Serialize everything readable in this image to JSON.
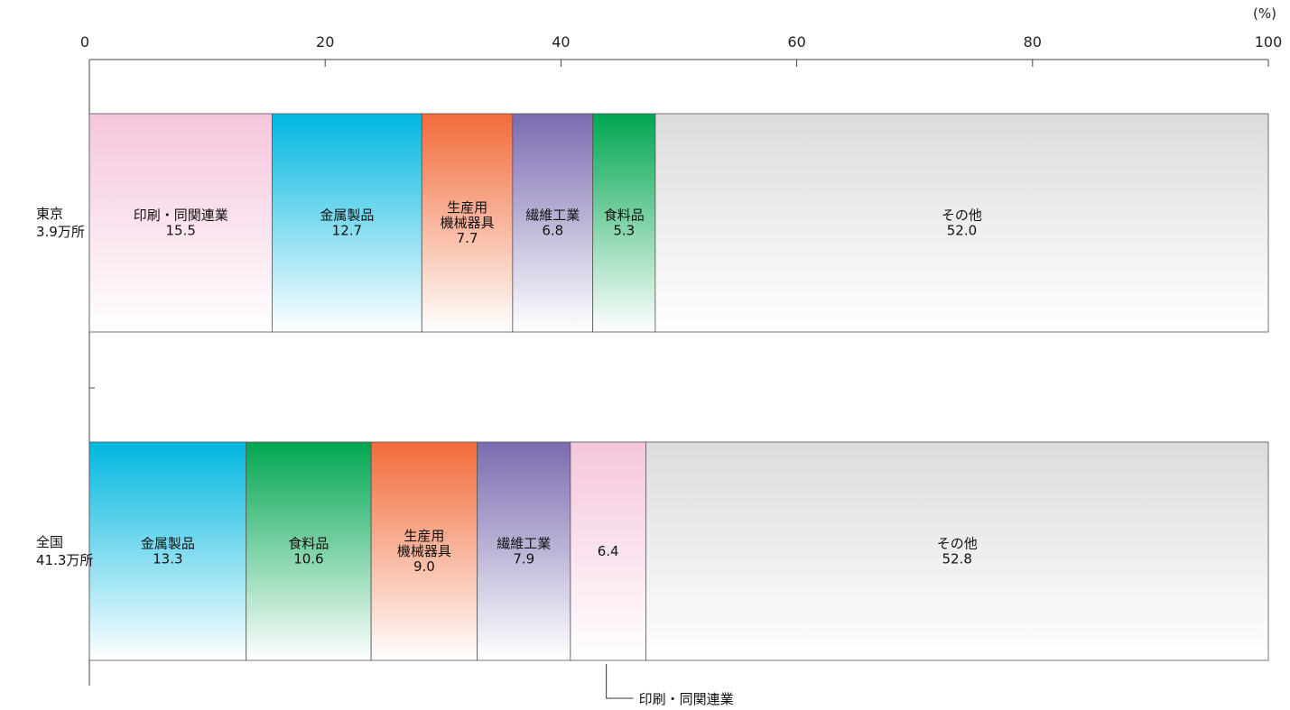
{
  "chart_data": {
    "type": "bar",
    "orientation": "horizontal",
    "stacked": true,
    "unit": "(%)",
    "xlim": [
      0,
      100
    ],
    "x_ticks": [
      0,
      20,
      40,
      60,
      80,
      100
    ],
    "grid": false,
    "rows": [
      {
        "label_lines": [
          "東京",
          "3.9万所"
        ],
        "segments": [
          {
            "label": [
              "印刷・同関連業"
            ],
            "value": 15.5,
            "value_text": "15.5",
            "color": "#f5c6dd"
          },
          {
            "label": [
              "金属製品"
            ],
            "value": 12.7,
            "value_text": "12.7",
            "color": "#00b7e0"
          },
          {
            "label": [
              "生産用",
              "機械器具"
            ],
            "value": 7.7,
            "value_text": "7.7",
            "color": "#f26b3a"
          },
          {
            "label": [
              "繊維工業"
            ],
            "value": 6.8,
            "value_text": "6.8",
            "color": "#7b6bb0"
          },
          {
            "label": [
              "食料品"
            ],
            "value": 5.3,
            "value_text": "5.3",
            "color": "#00a650"
          },
          {
            "label": [
              "その他"
            ],
            "value": 52.0,
            "value_text": "52.0",
            "color": "#dcdcdc"
          }
        ]
      },
      {
        "label_lines": [
          "全国",
          "41.3万所"
        ],
        "segments": [
          {
            "label": [
              "金属製品"
            ],
            "value": 13.3,
            "value_text": "13.3",
            "color": "#00b7e0"
          },
          {
            "label": [
              "食料品"
            ],
            "value": 10.6,
            "value_text": "10.6",
            "color": "#00a650"
          },
          {
            "label": [
              "生産用",
              "機械器具"
            ],
            "value": 9.0,
            "value_text": "9.0",
            "color": "#f26b3a"
          },
          {
            "label": [
              "繊維工業"
            ],
            "value": 7.9,
            "value_text": "7.9",
            "color": "#7b6bb0"
          },
          {
            "label": [],
            "value": 6.4,
            "value_text": "6.4",
            "color": "#f5c6dd",
            "callout": "印刷・同関連業"
          },
          {
            "label": [
              "その他"
            ],
            "value": 52.8,
            "value_text": "52.8",
            "color": "#dcdcdc"
          }
        ]
      }
    ]
  }
}
